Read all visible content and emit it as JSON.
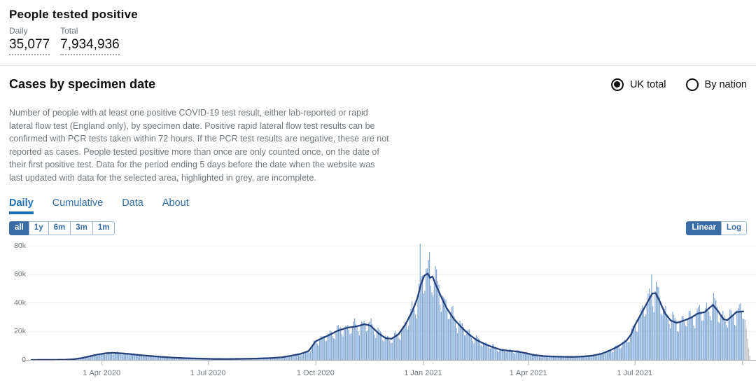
{
  "summary": {
    "title": "People tested positive",
    "daily_label": "Daily",
    "daily_value": "35,077",
    "total_label": "Total",
    "total_value": "7,934,936"
  },
  "card": {
    "title": "Cases by specimen date",
    "area_toggle": {
      "options": [
        {
          "label": "UK total",
          "selected": true
        },
        {
          "label": "By nation",
          "selected": false
        }
      ]
    },
    "description": "Number of people with at least one positive COVID-19 test result, either lab-reported or rapid lateral flow test (England only), by specimen date. Positive rapid lateral flow test results can be confirmed with PCR tests taken within 72 hours. If the PCR test results are negative, these are not reported as cases. People tested positive more than once are only counted once, on the date of their first positive test. Data for the period ending 5 days before the date when the website was last updated with data for the selected area, highlighted in grey, are incomplete.",
    "tabs": [
      {
        "label": "Daily",
        "active": true
      },
      {
        "label": "Cumulative",
        "active": false
      },
      {
        "label": "Data",
        "active": false
      },
      {
        "label": "About",
        "active": false
      }
    ],
    "range_buttons": [
      {
        "label": "all",
        "active": true
      },
      {
        "label": "1y",
        "active": false
      },
      {
        "label": "6m",
        "active": false
      },
      {
        "label": "3m",
        "active": false
      },
      {
        "label": "1m",
        "active": false
      }
    ],
    "scale_buttons": [
      {
        "label": "Linear",
        "active": true
      },
      {
        "label": "Log",
        "active": false
      }
    ]
  },
  "chart_data": {
    "type": "bar+line",
    "title": "Daily cases by specimen date, UK total, all time",
    "x_range": [
      "2020-02-01",
      "2021-10-08"
    ],
    "ylim": [
      0,
      80000
    ],
    "y_ticks": [
      {
        "value": 0,
        "label": "0"
      },
      {
        "value": 20000,
        "label": "20k"
      },
      {
        "value": 40000,
        "label": "40k"
      },
      {
        "value": 60000,
        "label": "60k"
      },
      {
        "value": 80000,
        "label": "80k"
      }
    ],
    "x_ticks": [
      {
        "date": "2020-04-01",
        "label": "1 Apr 2020"
      },
      {
        "date": "2020-07-01",
        "label": "1 Jul 2020"
      },
      {
        "date": "2020-10-01",
        "label": "1 Oct 2020"
      },
      {
        "date": "2021-01-01",
        "label": "1 Jan 2021"
      },
      {
        "date": "2021-04-01",
        "label": "1 Apr 2021"
      },
      {
        "date": "2021-07-01",
        "label": "1 Jul 2021"
      },
      {
        "date": "2021-10-01",
        "label": ""
      }
    ],
    "grid": true,
    "legend": "none",
    "series": [
      {
        "name": "daily-cases-bars",
        "style": "bar"
      },
      {
        "name": "7-day-average-line",
        "style": "line"
      }
    ],
    "avg_line": [
      [
        "2020-02-01",
        10
      ],
      [
        "2020-02-20",
        40
      ],
      [
        "2020-03-01",
        150
      ],
      [
        "2020-03-08",
        450
      ],
      [
        "2020-03-15",
        1300
      ],
      [
        "2020-03-22",
        2600
      ],
      [
        "2020-03-29",
        3800
      ],
      [
        "2020-04-05",
        4700
      ],
      [
        "2020-04-10",
        4950
      ],
      [
        "2020-04-16",
        4700
      ],
      [
        "2020-04-24",
        4200
      ],
      [
        "2020-05-03",
        3400
      ],
      [
        "2020-05-12",
        2800
      ],
      [
        "2020-05-21",
        2200
      ],
      [
        "2020-06-01",
        1600
      ],
      [
        "2020-06-12",
        1200
      ],
      [
        "2020-06-24",
        950
      ],
      [
        "2020-07-06",
        650
      ],
      [
        "2020-07-18",
        620
      ],
      [
        "2020-07-30",
        750
      ],
      [
        "2020-08-12",
        950
      ],
      [
        "2020-08-24",
        1300
      ],
      [
        "2020-09-02",
        1850
      ],
      [
        "2020-09-10",
        2900
      ],
      [
        "2020-09-18",
        4200
      ],
      [
        "2020-09-25",
        6200
      ],
      [
        "2020-09-28",
        9500
      ],
      [
        "2020-10-01",
        13000
      ],
      [
        "2020-10-06",
        15000
      ],
      [
        "2020-10-13",
        17500
      ],
      [
        "2020-10-20",
        20500
      ],
      [
        "2020-10-28",
        22500
      ],
      [
        "2020-11-05",
        23500
      ],
      [
        "2020-11-12",
        25000
      ],
      [
        "2020-11-17",
        24000
      ],
      [
        "2020-11-24",
        18500
      ],
      [
        "2020-11-30",
        15200
      ],
      [
        "2020-12-05",
        14800
      ],
      [
        "2020-12-11",
        18000
      ],
      [
        "2020-12-17",
        25000
      ],
      [
        "2020-12-23",
        34500
      ],
      [
        "2020-12-27",
        43000
      ],
      [
        "2020-12-30",
        52500
      ],
      [
        "2021-01-02",
        59000
      ],
      [
        "2021-01-05",
        60500
      ],
      [
        "2021-01-07",
        57500
      ],
      [
        "2021-01-09",
        58500
      ],
      [
        "2021-01-12",
        52500
      ],
      [
        "2021-01-16",
        45000
      ],
      [
        "2021-01-21",
        36500
      ],
      [
        "2021-01-27",
        29000
      ],
      [
        "2021-02-02",
        23500
      ],
      [
        "2021-02-09",
        18000
      ],
      [
        "2021-02-16",
        13800
      ],
      [
        "2021-02-23",
        11000
      ],
      [
        "2021-03-02",
        8800
      ],
      [
        "2021-03-09",
        7000
      ],
      [
        "2021-03-16",
        6300
      ],
      [
        "2021-03-23",
        5800
      ],
      [
        "2021-03-30",
        4700
      ],
      [
        "2021-04-06",
        3400
      ],
      [
        "2021-04-14",
        2700
      ],
      [
        "2021-04-22",
        2350
      ],
      [
        "2021-05-01",
        2150
      ],
      [
        "2021-05-10",
        2100
      ],
      [
        "2021-05-18",
        2400
      ],
      [
        "2021-05-26",
        3000
      ],
      [
        "2021-06-03",
        4400
      ],
      [
        "2021-06-10",
        6700
      ],
      [
        "2021-06-17",
        9500
      ],
      [
        "2021-06-24",
        13500
      ],
      [
        "2021-06-28",
        18000
      ],
      [
        "2021-07-01",
        24000
      ],
      [
        "2021-07-06",
        31500
      ],
      [
        "2021-07-11",
        39000
      ],
      [
        "2021-07-16",
        46500
      ],
      [
        "2021-07-19",
        46800
      ],
      [
        "2021-07-23",
        40000
      ],
      [
        "2021-07-27",
        32500
      ],
      [
        "2021-08-01",
        27500
      ],
      [
        "2021-08-06",
        26000
      ],
      [
        "2021-08-12",
        27500
      ],
      [
        "2021-08-18",
        29500
      ],
      [
        "2021-08-24",
        32500
      ],
      [
        "2021-08-30",
        33500
      ],
      [
        "2021-09-03",
        36500
      ],
      [
        "2021-09-06",
        38500
      ],
      [
        "2021-09-10",
        34500
      ],
      [
        "2021-09-15",
        28500
      ],
      [
        "2021-09-18",
        27800
      ],
      [
        "2021-09-22",
        30500
      ],
      [
        "2021-09-26",
        33500
      ],
      [
        "2021-10-02",
        34000
      ]
    ],
    "line_end": "2021-10-02",
    "bar_spikes": [
      [
        "2020-12-29",
        81500
      ],
      [
        "2021-01-06",
        75500
      ],
      [
        "2021-07-15",
        60000
      ]
    ],
    "incomplete_bars": [
      [
        "2021-10-03",
        28000
      ],
      [
        "2021-10-04",
        22000
      ],
      [
        "2021-10-05",
        15000
      ],
      [
        "2021-10-06",
        8000
      ],
      [
        "2021-10-07",
        3000
      ]
    ],
    "weekly_profile": [
      0.78,
      1.02,
      1.13,
      1.16,
      1.09,
      1.0,
      0.82
    ],
    "colors": {
      "bar": "rgba(95,142,200,0.8)",
      "bar_incomplete": "rgba(165,168,171,0.75)",
      "line": "#24417c",
      "grid": "#ededed",
      "axis": "#a9adb1",
      "tick_text": "#6f777b"
    }
  }
}
